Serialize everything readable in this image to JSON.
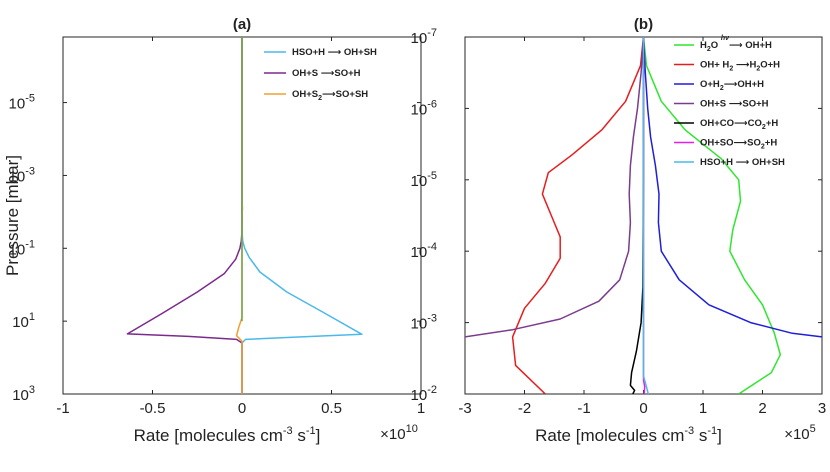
{
  "chart_data": [
    {
      "type": "line",
      "title": "(a)",
      "xlabel": "Rate [molecules cm^-3 s^-1]",
      "x_multiplier": "×10^10",
      "ylabel": "Pressure [mbar]",
      "xlim": [
        -1,
        1
      ],
      "ylim_log10": [
        -6.8,
        3
      ],
      "y_scale": "log",
      "y_reversed": true,
      "x_ticks": [
        "-1",
        "-0.5",
        "0",
        "0.5",
        "1"
      ],
      "x_tick_values": [
        -1,
        -0.5,
        0,
        0.5,
        1
      ],
      "y_ticks": [
        {
          "base": "10",
          "exp": "-5",
          "log": -5
        },
        {
          "base": "10",
          "exp": "-3",
          "log": -3
        },
        {
          "base": "10",
          "exp": "-1",
          "log": -1
        },
        {
          "base": "10",
          "exp": "1",
          "log": 1
        },
        {
          "base": "10",
          "exp": "3",
          "log": 3
        }
      ],
      "legend_position": "top-right",
      "series": [
        {
          "name": "HSO+H ⟶ OH+SH",
          "legend": {
            "main": "HSO+H ⟶ OH+SH",
            "parts": []
          },
          "color": "#4db8ea",
          "points": [
            [
              0,
              -6.8
            ],
            [
              0,
              -1.8
            ],
            [
              0.001,
              -1.4
            ],
            [
              0.004,
              -1.2
            ],
            [
              0.015,
              -1.0
            ],
            [
              0.04,
              -0.75
            ],
            [
              0.1,
              -0.35
            ],
            [
              0.25,
              0.2
            ],
            [
              0.45,
              0.75
            ],
            [
              0.67,
              1.36
            ],
            [
              0.25,
              1.45
            ],
            [
              0.02,
              1.5
            ],
            [
              0,
              1.6
            ],
            [
              0,
              3
            ]
          ]
        },
        {
          "name": "OH+S ⟶ SO+H",
          "legend": {
            "main": "OH+S ⟶SO+H",
            "parts": []
          },
          "color": "#7b2a8c",
          "points": [
            [
              0,
              -6.8
            ],
            [
              0,
              -1.8
            ],
            [
              -0.001,
              -1.4
            ],
            [
              -0.004,
              -1.2
            ],
            [
              -0.012,
              -1.0
            ],
            [
              -0.035,
              -0.7
            ],
            [
              -0.1,
              -0.3
            ],
            [
              -0.25,
              0.2
            ],
            [
              -0.45,
              0.8
            ],
            [
              -0.64,
              1.35
            ],
            [
              -0.3,
              1.42
            ],
            [
              -0.03,
              1.5
            ],
            [
              0,
              1.6
            ],
            [
              0,
              3
            ]
          ]
        },
        {
          "name": "OH+S2 ⟶ SO+SH",
          "legend": {
            "main": "",
            "parts": [
              [
                "OH+S",
                ""
              ],
              [
                "2",
                "sub"
              ],
              [
                "⟶SO+SH",
                ""
              ]
            ]
          },
          "color": "#eda134",
          "points": [
            [
              0,
              -6.8
            ],
            [
              0,
              -2.3
            ],
            [
              0.003,
              -2.1
            ],
            [
              0,
              -1.9
            ],
            [
              0,
              0.9
            ],
            [
              -0.02,
              1.2
            ],
            [
              -0.03,
              1.4
            ],
            [
              0,
              1.55
            ],
            [
              0,
              3
            ]
          ]
        },
        {
          "name": "vertical",
          "legend": null,
          "color": "#6aa84f",
          "points": [
            [
              0,
              -6.8
            ],
            [
              0,
              1.0
            ]
          ]
        }
      ]
    },
    {
      "type": "line",
      "title": "(b)",
      "xlabel": "Rate [molecules cm^-3 s^-1]",
      "x_multiplier": "×10^5",
      "ylabel": "",
      "xlim": [
        -3,
        3
      ],
      "ylim_log10": [
        -7,
        -2
      ],
      "y_scale": "log",
      "y_reversed": false,
      "x_ticks": [
        "-3",
        "-2",
        "-1",
        "0",
        "1",
        "2",
        "3"
      ],
      "x_tick_values": [
        -3,
        -2,
        -1,
        0,
        1,
        2,
        3
      ],
      "y_ticks": [
        {
          "base": "10",
          "exp": "-7",
          "log": -7
        },
        {
          "base": "10",
          "exp": "-6",
          "log": -6
        },
        {
          "base": "10",
          "exp": "-5",
          "log": -5
        },
        {
          "base": "10",
          "exp": "-4",
          "log": -4
        },
        {
          "base": "10",
          "exp": "-3",
          "log": -3
        },
        {
          "base": "10",
          "exp": "-2",
          "log": -2
        }
      ],
      "legend_position": "top-right",
      "series": [
        {
          "name": "H2O + hν ⟶ OH+H",
          "legend": {
            "main": "",
            "parts": [
              [
                "H",
                ""
              ],
              [
                "2",
                "sub"
              ],
              [
                "O ",
                ""
              ],
              [
                "hν",
                "sup"
              ],
              [
                "⟶ OH+H",
                ""
              ]
            ]
          },
          "color": "#2fe62f",
          "points": [
            [
              0,
              -7
            ],
            [
              0.05,
              -6.6
            ],
            [
              0.3,
              -6.1
            ],
            [
              0.7,
              -5.7
            ],
            [
              1.3,
              -5.3
            ],
            [
              1.6,
              -5.0
            ],
            [
              1.63,
              -4.7
            ],
            [
              1.5,
              -4.3
            ],
            [
              1.45,
              -4.0
            ],
            [
              1.7,
              -3.6
            ],
            [
              2.0,
              -3.25
            ],
            [
              2.2,
              -2.85
            ],
            [
              2.3,
              -2.55
            ],
            [
              2.15,
              -2.3
            ],
            [
              1.6,
              -2
            ]
          ]
        },
        {
          "name": "OH+ H2 ⟶ H2O+H",
          "legend": {
            "main": "",
            "parts": [
              [
                "OH+ H",
                ""
              ],
              [
                "2",
                "sub"
              ],
              [
                " ⟶H",
                ""
              ],
              [
                "2",
                "sub"
              ],
              [
                "O+H",
                ""
              ]
            ]
          },
          "color": "#e81c1c",
          "points": [
            [
              0,
              -7
            ],
            [
              -0.05,
              -6.6
            ],
            [
              -0.3,
              -6.1
            ],
            [
              -0.7,
              -5.7
            ],
            [
              -1.2,
              -5.35
            ],
            [
              -1.6,
              -5.1
            ],
            [
              -1.7,
              -4.8
            ],
            [
              -1.55,
              -4.5
            ],
            [
              -1.4,
              -4.2
            ],
            [
              -1.4,
              -3.9
            ],
            [
              -1.65,
              -3.55
            ],
            [
              -2.0,
              -3.2
            ],
            [
              -2.2,
              -2.8
            ],
            [
              -2.15,
              -2.4
            ],
            [
              -1.65,
              -2
            ]
          ]
        },
        {
          "name": "O+H2 ⟶ OH+H",
          "legend": {
            "main": "",
            "parts": [
              [
                "O+H",
                ""
              ],
              [
                "2",
                "sub"
              ],
              [
                "⟶OH+H",
                ""
              ]
            ]
          },
          "color": "#1f1fd8",
          "points": [
            [
              0,
              -7
            ],
            [
              0.03,
              -6.5
            ],
            [
              0.07,
              -6.0
            ],
            [
              0.12,
              -5.6
            ],
            [
              0.2,
              -5.2
            ],
            [
              0.26,
              -4.8
            ],
            [
              0.25,
              -4.4
            ],
            [
              0.3,
              -4.0
            ],
            [
              0.6,
              -3.6
            ],
            [
              1.1,
              -3.25
            ],
            [
              1.8,
              -3.0
            ],
            [
              2.5,
              -2.85
            ],
            [
              3.0,
              -2.8
            ]
          ]
        },
        {
          "name": "OH+S ⟶ SO+H",
          "legend": {
            "main": "OH+S ⟶SO+H",
            "parts": []
          },
          "color": "#7b3c8e",
          "points": [
            [
              0,
              -7
            ],
            [
              -0.04,
              -6.5
            ],
            [
              -0.1,
              -6.0
            ],
            [
              -0.17,
              -5.6
            ],
            [
              -0.22,
              -5.2
            ],
            [
              -0.24,
              -4.8
            ],
            [
              -0.22,
              -4.4
            ],
            [
              -0.25,
              -4.0
            ],
            [
              -0.4,
              -3.6
            ],
            [
              -0.75,
              -3.3
            ],
            [
              -1.4,
              -3.05
            ],
            [
              -2.2,
              -2.9
            ],
            [
              -3.0,
              -2.8
            ]
          ]
        },
        {
          "name": "OH+CO ⟶ CO2+H",
          "legend": {
            "main": "",
            "parts": [
              [
                "OH+CO⟶CO",
                ""
              ],
              [
                "2",
                "sub"
              ],
              [
                "+H",
                ""
              ]
            ]
          },
          "color": "#000000",
          "points": [
            [
              0,
              -7
            ],
            [
              0,
              -5
            ],
            [
              -0.01,
              -3.5
            ],
            [
              -0.04,
              -3.0
            ],
            [
              -0.12,
              -2.6
            ],
            [
              -0.2,
              -2.3
            ],
            [
              -0.22,
              -2.12
            ],
            [
              -0.15,
              -2.05
            ],
            [
              -0.18,
              -2
            ]
          ]
        },
        {
          "name": "OH+SO ⟶ SO2+H",
          "legend": {
            "main": "",
            "parts": [
              [
                "OH+SO⟶SO",
                ""
              ],
              [
                "2",
                "sub"
              ],
              [
                "+H",
                ""
              ]
            ]
          },
          "color": "#e61fe6",
          "points": [
            [
              0,
              -7
            ],
            [
              0,
              -2.2
            ],
            [
              0.02,
              -2.1
            ],
            [
              0.01,
              -2
            ]
          ]
        },
        {
          "name": "HSO+H ⟶ OH+SH",
          "legend": {
            "main": "HSO+H ⟶ OH+SH",
            "parts": []
          },
          "color": "#4db8ea",
          "points": [
            [
              0,
              -7
            ],
            [
              0,
              -2.25
            ],
            [
              0.05,
              -2.1
            ],
            [
              0.08,
              -2
            ]
          ]
        }
      ]
    }
  ]
}
